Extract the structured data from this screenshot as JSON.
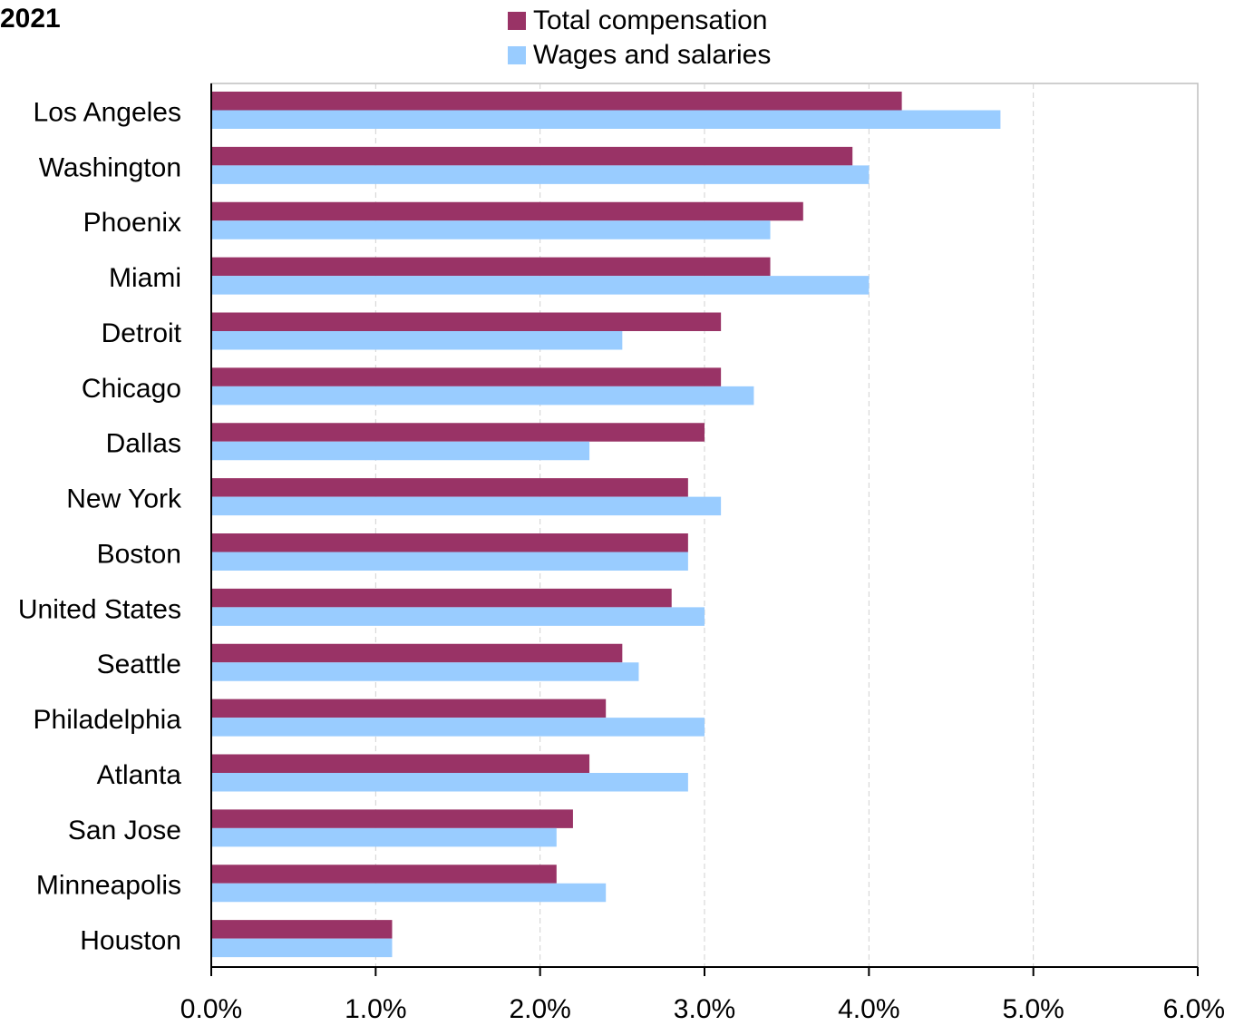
{
  "chart_data": {
    "type": "bar",
    "orientation": "horizontal",
    "title": "2021",
    "categories": [
      "Los Angeles",
      "Washington",
      "Phoenix",
      "Miami",
      "Detroit",
      "Chicago",
      "Dallas",
      "New York",
      "Boston",
      "United States",
      "Seattle",
      "Philadelphia",
      "Atlanta",
      "San Jose",
      "Minneapolis",
      "Houston"
    ],
    "series": [
      {
        "name": "Total compensation",
        "color": "#993366",
        "values": [
          4.2,
          3.9,
          3.6,
          3.4,
          3.1,
          3.1,
          3.0,
          2.9,
          2.9,
          2.8,
          2.5,
          2.4,
          2.3,
          2.2,
          2.1,
          1.1
        ]
      },
      {
        "name": "Wages and salaries",
        "color": "#99ccff",
        "values": [
          4.8,
          4.0,
          3.4,
          4.0,
          2.5,
          3.3,
          2.3,
          3.1,
          2.9,
          3.0,
          2.6,
          3.0,
          2.9,
          2.1,
          2.4,
          1.1
        ]
      }
    ],
    "xlim": [
      0,
      6
    ],
    "xticks": [
      "0.0%",
      "1.0%",
      "2.0%",
      "3.0%",
      "4.0%",
      "5.0%",
      "6.0%"
    ],
    "grid": "vertical dashed",
    "legend": "top"
  }
}
